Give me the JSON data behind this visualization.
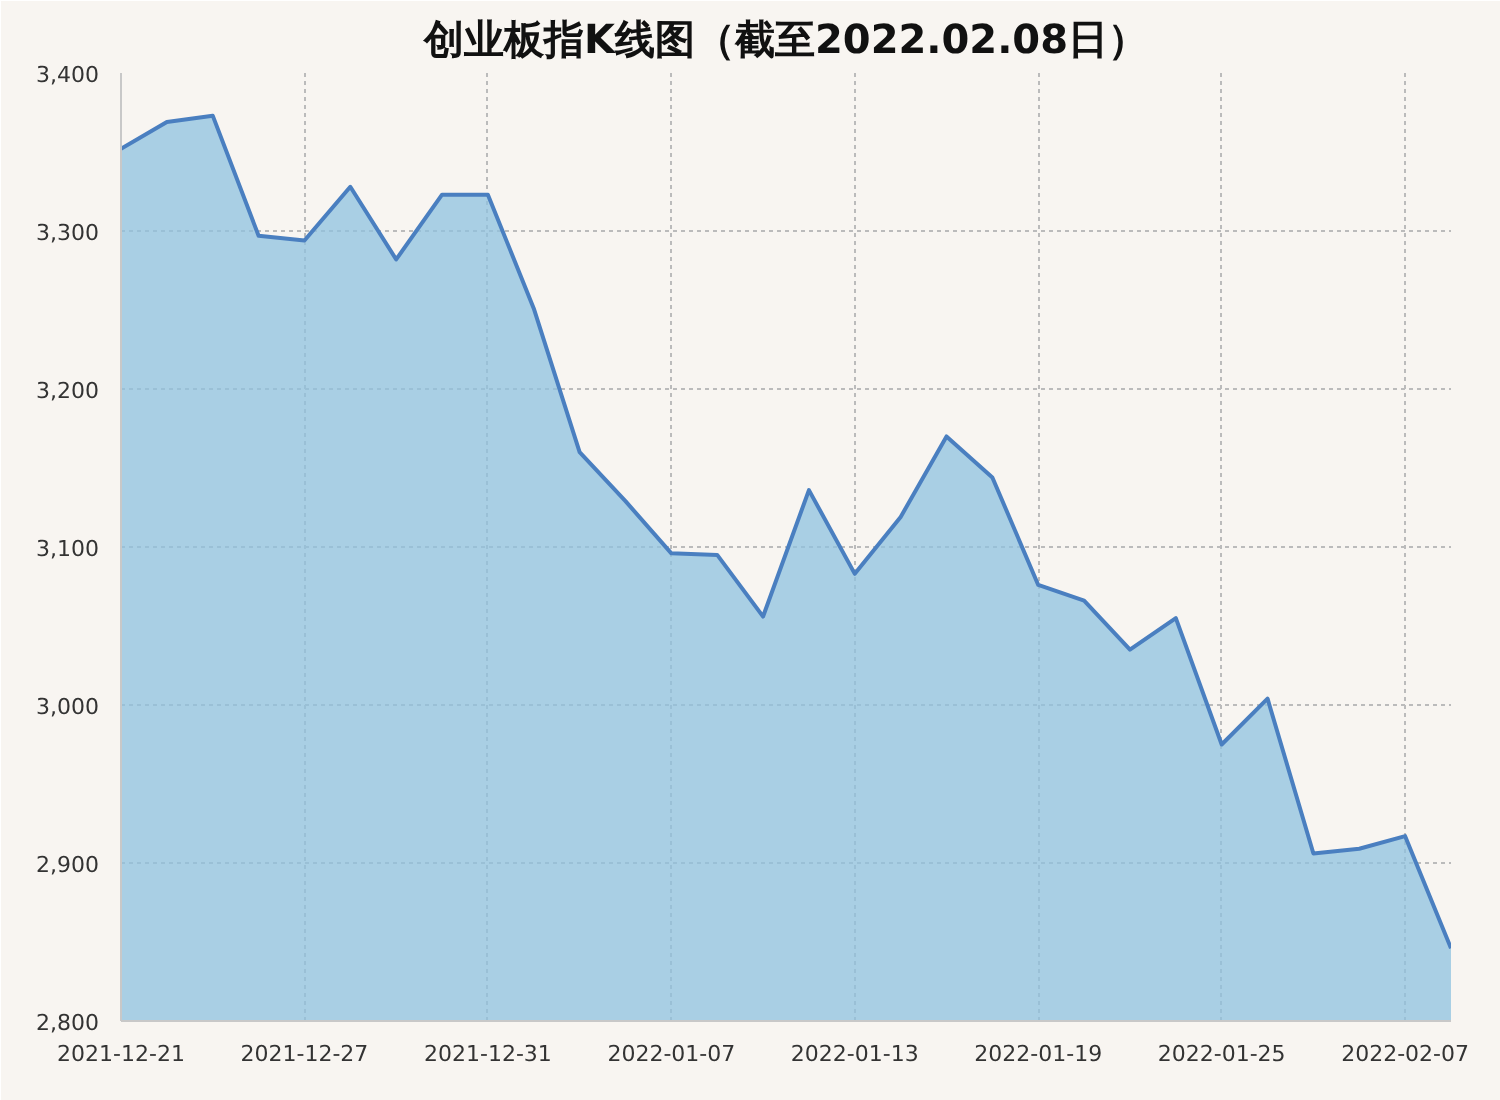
{
  "chart_data": {
    "type": "area",
    "title": "创业板指K线图（截至2022.02.08日）",
    "categories": [
      "2021-12-21",
      null,
      null,
      null,
      "2021-12-27",
      null,
      null,
      null,
      "2021-12-31",
      null,
      null,
      null,
      "2022-01-07",
      null,
      null,
      null,
      "2022-01-13",
      null,
      null,
      null,
      "2022-01-19",
      null,
      null,
      null,
      "2022-01-25",
      null,
      null,
      null,
      "2022-02-07",
      null
    ],
    "series": [
      {
        "color": "#4a7fc0",
        "values": [
          3352,
          3369,
          3373,
          3297,
          3294,
          3328,
          3282,
          3323,
          3323,
          3251,
          3160,
          3129,
          3096,
          3095,
          3056,
          3136,
          3083,
          3119,
          3170,
          3144,
          3076,
          3066,
          3035,
          3055,
          2975,
          3004,
          2906,
          2909,
          2917,
          2846
        ]
      }
    ],
    "ylim": [
      2800,
      3400
    ],
    "yticks": [
      {
        "value": 2800,
        "label": "2,800"
      },
      {
        "value": 2900,
        "label": "2,900"
      },
      {
        "value": 3000,
        "label": "3,000"
      },
      {
        "value": 3100,
        "label": "3,100"
      },
      {
        "value": 3200,
        "label": "3,200"
      },
      {
        "value": 3300,
        "label": "3,300"
      },
      {
        "value": 3400,
        "label": "3,400"
      }
    ],
    "grid": true
  }
}
